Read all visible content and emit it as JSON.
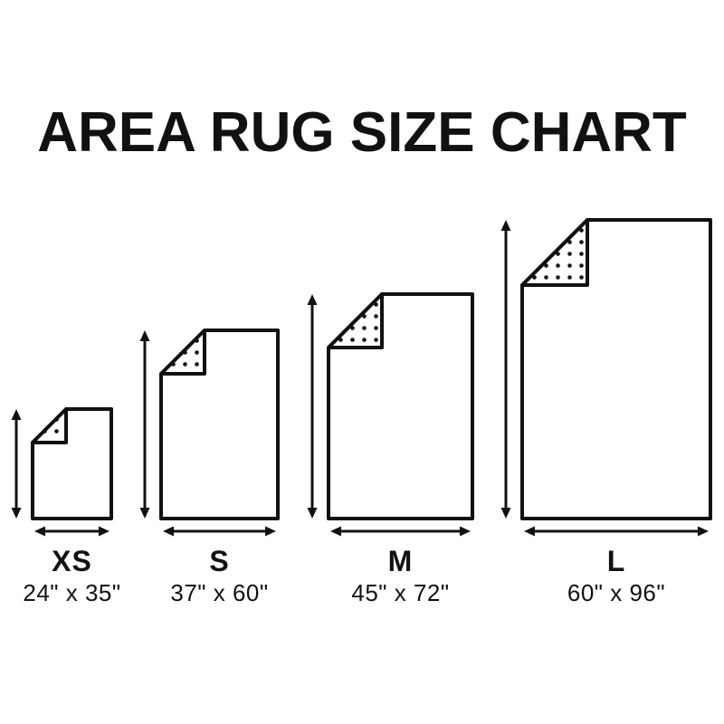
{
  "title": "AREA RUG SIZE CHART",
  "colors": {
    "ink": "#111111",
    "background": "#ffffff"
  },
  "diagram": {
    "type": "size-chart",
    "item": "area rug",
    "sizes": [
      {
        "label": "XS",
        "dimensions": "24\" x 35\"",
        "width_in": 24,
        "height_in": 35
      },
      {
        "label": "S",
        "dimensions": "37\" x 60\"",
        "width_in": 37,
        "height_in": 60
      },
      {
        "label": "M",
        "dimensions": "45\" x 72\"",
        "width_in": 45,
        "height_in": 72
      },
      {
        "label": "L",
        "dimensions": "60\" x 96\"",
        "width_in": 60,
        "height_in": 96
      }
    ]
  }
}
